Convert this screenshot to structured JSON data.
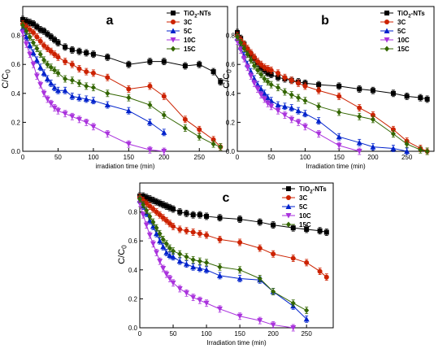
{
  "chart_data": [
    {
      "type": "line",
      "panel": "a",
      "xlabel": "irradiation time (min)",
      "ylabel": "C/C0",
      "xlim": [
        0,
        290
      ],
      "ylim": [
        0,
        1.0
      ],
      "xticks": [
        0,
        50,
        100,
        150,
        200,
        250
      ],
      "yticks": [
        0.0,
        0.2,
        0.4,
        0.6,
        0.8
      ],
      "legend_position": "top-right",
      "series": [
        {
          "name": "TiO2-NTs",
          "color": "#000000",
          "marker": "square",
          "x": [
            0,
            5,
            10,
            15,
            20,
            25,
            30,
            35,
            40,
            45,
            50,
            60,
            70,
            80,
            90,
            100,
            120,
            150,
            180,
            200,
            230,
            250,
            270,
            280
          ],
          "y": [
            0.91,
            0.9,
            0.89,
            0.88,
            0.86,
            0.84,
            0.83,
            0.81,
            0.79,
            0.77,
            0.75,
            0.72,
            0.7,
            0.69,
            0.68,
            0.67,
            0.65,
            0.6,
            0.62,
            0.62,
            0.59,
            0.6,
            0.55,
            0.48
          ]
        },
        {
          "name": "3C",
          "color": "#cc2200",
          "marker": "circle",
          "x": [
            0,
            5,
            10,
            15,
            20,
            25,
            30,
            35,
            40,
            45,
            50,
            60,
            70,
            80,
            90,
            100,
            120,
            150,
            180,
            200,
            230,
            250,
            270,
            280
          ],
          "y": [
            0.88,
            0.86,
            0.84,
            0.82,
            0.79,
            0.76,
            0.73,
            0.71,
            0.69,
            0.67,
            0.65,
            0.62,
            0.6,
            0.57,
            0.55,
            0.54,
            0.51,
            0.43,
            0.45,
            0.38,
            0.22,
            0.15,
            0.08,
            0.03
          ]
        },
        {
          "name": "5C",
          "color": "#0022cc",
          "marker": "triangle-up",
          "x": [
            0,
            5,
            10,
            15,
            20,
            25,
            30,
            35,
            40,
            45,
            50,
            60,
            70,
            80,
            90,
            100,
            120,
            150,
            180,
            200
          ],
          "y": [
            0.85,
            0.79,
            0.73,
            0.68,
            0.63,
            0.58,
            0.54,
            0.5,
            0.47,
            0.44,
            0.42,
            0.42,
            0.38,
            0.37,
            0.36,
            0.35,
            0.32,
            0.28,
            0.2,
            0.13
          ]
        },
        {
          "name": "10C",
          "color": "#aa33dd",
          "marker": "triangle-down",
          "x": [
            0,
            5,
            10,
            15,
            20,
            25,
            30,
            35,
            40,
            45,
            50,
            60,
            70,
            80,
            90,
            100,
            120,
            150,
            180,
            200
          ],
          "y": [
            0.82,
            0.74,
            0.67,
            0.6,
            0.52,
            0.46,
            0.4,
            0.36,
            0.33,
            0.3,
            0.28,
            0.26,
            0.24,
            0.22,
            0.2,
            0.17,
            0.12,
            0.05,
            0.01,
            0.0
          ]
        },
        {
          "name": "15C",
          "color": "#336600",
          "marker": "diamond",
          "x": [
            0,
            5,
            10,
            15,
            20,
            25,
            30,
            35,
            40,
            45,
            50,
            60,
            70,
            80,
            90,
            100,
            120,
            150,
            180,
            200,
            230,
            250,
            270,
            280
          ],
          "y": [
            0.87,
            0.83,
            0.79,
            0.75,
            0.71,
            0.67,
            0.63,
            0.6,
            0.58,
            0.56,
            0.54,
            0.5,
            0.49,
            0.47,
            0.45,
            0.44,
            0.4,
            0.37,
            0.32,
            0.25,
            0.16,
            0.1,
            0.05,
            0.03
          ]
        }
      ]
    },
    {
      "type": "line",
      "panel": "b",
      "xlabel": "Irradiation time (min)",
      "ylabel": "C/C0",
      "xlim": [
        0,
        290
      ],
      "ylim": [
        0,
        1.0
      ],
      "xticks": [
        0,
        50,
        100,
        150,
        200,
        250
      ],
      "yticks": [
        0.0,
        0.2,
        0.4,
        0.6,
        0.8
      ],
      "legend_position": "top-right",
      "series": [
        {
          "name": "TiO2-NTs",
          "color": "#000000",
          "marker": "square",
          "x": [
            0,
            5,
            10,
            15,
            20,
            25,
            30,
            35,
            40,
            45,
            50,
            60,
            70,
            80,
            90,
            100,
            120,
            150,
            180,
            200,
            230,
            250,
            270,
            280
          ],
          "y": [
            0.82,
            0.78,
            0.74,
            0.7,
            0.67,
            0.64,
            0.61,
            0.58,
            0.56,
            0.54,
            0.53,
            0.51,
            0.5,
            0.49,
            0.48,
            0.47,
            0.46,
            0.45,
            0.43,
            0.42,
            0.4,
            0.38,
            0.37,
            0.36
          ]
        },
        {
          "name": "3C",
          "color": "#cc2200",
          "marker": "circle",
          "x": [
            0,
            5,
            10,
            15,
            20,
            25,
            30,
            35,
            40,
            45,
            50,
            60,
            70,
            80,
            90,
            100,
            120,
            150,
            180,
            200,
            230,
            250,
            270,
            280
          ],
          "y": [
            0.8,
            0.77,
            0.74,
            0.71,
            0.68,
            0.65,
            0.62,
            0.6,
            0.58,
            0.57,
            0.56,
            0.54,
            0.51,
            0.49,
            0.47,
            0.45,
            0.42,
            0.38,
            0.3,
            0.25,
            0.15,
            0.07,
            0.02,
            0.0
          ]
        },
        {
          "name": "5C",
          "color": "#0022cc",
          "marker": "triangle-up",
          "x": [
            0,
            5,
            10,
            15,
            20,
            25,
            30,
            35,
            40,
            45,
            50,
            60,
            70,
            80,
            90,
            100,
            120,
            150,
            180,
            200,
            230,
            250
          ],
          "y": [
            0.78,
            0.72,
            0.66,
            0.6,
            0.55,
            0.5,
            0.46,
            0.43,
            0.4,
            0.37,
            0.35,
            0.32,
            0.31,
            0.3,
            0.28,
            0.26,
            0.21,
            0.1,
            0.06,
            0.03,
            0.02,
            0.0
          ]
        },
        {
          "name": "10C",
          "color": "#aa33dd",
          "marker": "triangle-down",
          "x": [
            0,
            5,
            10,
            15,
            20,
            25,
            30,
            35,
            40,
            45,
            50,
            60,
            70,
            80,
            90,
            100,
            120,
            150,
            180
          ],
          "y": [
            0.76,
            0.7,
            0.64,
            0.58,
            0.52,
            0.47,
            0.43,
            0.39,
            0.36,
            0.33,
            0.31,
            0.28,
            0.25,
            0.22,
            0.2,
            0.17,
            0.12,
            0.04,
            0.0
          ]
        },
        {
          "name": "15C",
          "color": "#336600",
          "marker": "diamond",
          "x": [
            0,
            5,
            10,
            15,
            20,
            25,
            30,
            35,
            40,
            45,
            50,
            60,
            70,
            80,
            90,
            100,
            120,
            150,
            180,
            200,
            230,
            250,
            270,
            280
          ],
          "y": [
            0.79,
            0.75,
            0.71,
            0.67,
            0.63,
            0.59,
            0.56,
            0.53,
            0.5,
            0.48,
            0.46,
            0.44,
            0.41,
            0.39,
            0.37,
            0.35,
            0.31,
            0.27,
            0.24,
            0.22,
            0.12,
            0.05,
            0.01,
            0.0
          ]
        }
      ]
    },
    {
      "type": "line",
      "panel": "c",
      "xlabel": "Irradiation time (min)",
      "ylabel": "C/C0",
      "xlim": [
        0,
        290
      ],
      "ylim": [
        0,
        1.0
      ],
      "xticks": [
        0,
        50,
        100,
        150,
        200,
        250
      ],
      "yticks": [
        0.0,
        0.2,
        0.4,
        0.6,
        0.8
      ],
      "legend_position": "top-right",
      "series": [
        {
          "name": "TiO2-NTs",
          "color": "#000000",
          "marker": "square",
          "x": [
            0,
            5,
            10,
            15,
            20,
            25,
            30,
            35,
            40,
            45,
            50,
            60,
            70,
            80,
            90,
            100,
            120,
            150,
            180,
            200,
            230,
            250,
            270,
            280
          ],
          "y": [
            0.91,
            0.91,
            0.9,
            0.89,
            0.88,
            0.87,
            0.86,
            0.85,
            0.84,
            0.83,
            0.82,
            0.8,
            0.79,
            0.78,
            0.78,
            0.77,
            0.76,
            0.75,
            0.73,
            0.71,
            0.69,
            0.68,
            0.67,
            0.66
          ]
        },
        {
          "name": "3C",
          "color": "#cc2200",
          "marker": "circle",
          "x": [
            0,
            5,
            10,
            15,
            20,
            25,
            30,
            35,
            40,
            45,
            50,
            60,
            70,
            80,
            90,
            100,
            120,
            150,
            180,
            200,
            230,
            250,
            270,
            280
          ],
          "y": [
            0.9,
            0.88,
            0.86,
            0.84,
            0.82,
            0.8,
            0.78,
            0.76,
            0.74,
            0.72,
            0.7,
            0.68,
            0.67,
            0.66,
            0.65,
            0.64,
            0.61,
            0.59,
            0.55,
            0.51,
            0.48,
            0.45,
            0.39,
            0.35
          ]
        },
        {
          "name": "5C",
          "color": "#0022cc",
          "marker": "triangle-up",
          "x": [
            0,
            5,
            10,
            15,
            20,
            25,
            30,
            35,
            40,
            45,
            50,
            60,
            70,
            80,
            90,
            100,
            120,
            150,
            180,
            200,
            230,
            250
          ],
          "y": [
            0.88,
            0.84,
            0.79,
            0.74,
            0.7,
            0.65,
            0.6,
            0.56,
            0.52,
            0.5,
            0.49,
            0.46,
            0.44,
            0.42,
            0.41,
            0.4,
            0.36,
            0.34,
            0.33,
            0.25,
            0.15,
            0.06
          ]
        },
        {
          "name": "10C",
          "color": "#aa33dd",
          "marker": "triangle-down",
          "x": [
            0,
            5,
            10,
            15,
            20,
            25,
            30,
            35,
            40,
            45,
            50,
            60,
            70,
            80,
            90,
            100,
            120,
            150,
            180,
            200,
            230
          ],
          "y": [
            0.86,
            0.78,
            0.71,
            0.64,
            0.58,
            0.52,
            0.46,
            0.41,
            0.37,
            0.34,
            0.31,
            0.27,
            0.24,
            0.21,
            0.19,
            0.17,
            0.13,
            0.08,
            0.05,
            0.02,
            0.0
          ]
        },
        {
          "name": "15C",
          "color": "#336600",
          "marker": "diamond",
          "x": [
            0,
            5,
            10,
            15,
            20,
            25,
            30,
            35,
            40,
            45,
            50,
            60,
            70,
            80,
            90,
            100,
            120,
            150,
            180,
            200,
            230,
            250
          ],
          "y": [
            0.89,
            0.85,
            0.81,
            0.77,
            0.73,
            0.69,
            0.65,
            0.61,
            0.58,
            0.55,
            0.53,
            0.51,
            0.49,
            0.47,
            0.46,
            0.45,
            0.42,
            0.4,
            0.34,
            0.25,
            0.17,
            0.12
          ]
        }
      ]
    }
  ]
}
